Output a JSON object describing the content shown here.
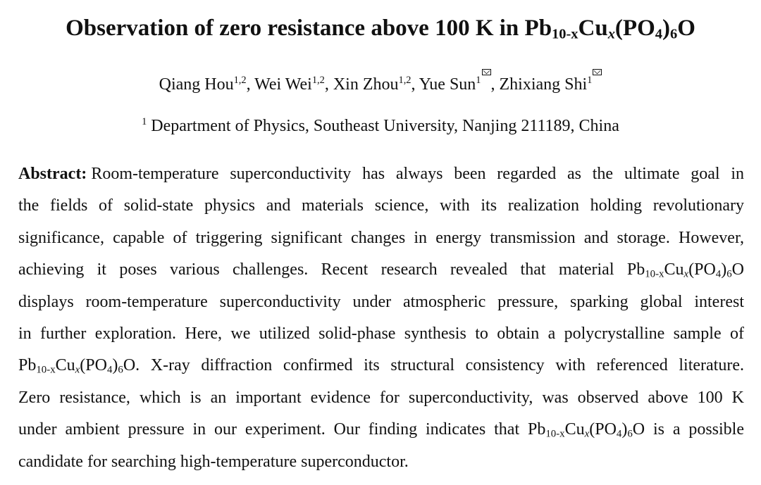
{
  "paper": {
    "title": {
      "prefix": "Observation of zero resistance above 100 K in ",
      "formula": {
        "a": "Pb",
        "b": "10-x",
        "c": "Cu",
        "d": "x",
        "e": "(PO",
        "f": "4",
        "g": ")",
        "h": "6",
        "i": "O"
      }
    },
    "authors": [
      {
        "name": "Qiang Hou",
        "aff": "1,2",
        "corresponding": false,
        "sep": ", "
      },
      {
        "name": "Wei Wei",
        "aff": "1,2",
        "corresponding": false,
        "sep": ", "
      },
      {
        "name": "Xin Zhou",
        "aff": "1,2",
        "corresponding": false,
        "sep": ", "
      },
      {
        "name": "Yue Sun",
        "aff": "1",
        "corresponding": true,
        "sep": ", "
      },
      {
        "name": "Zhixiang Shi",
        "aff": "1",
        "corresponding": true,
        "sep": ""
      }
    ],
    "affiliation": {
      "marker": "1",
      "text": "Department of Physics, Southeast University, Nanjing 211189, China"
    },
    "abstract": {
      "label": "Abstract:",
      "lines": [
        "Room-temperature superconductivity has always been regarded as the ultimate goal in",
        "the fields of solid-state physics and materials science, with its realization holding revolutionary",
        "significance, capable of triggering significant changes in energy transmission and storage. However,",
        "achieving it poses various challenges. Recent research revealed that material ",
        "displays room-temperature superconductivity under atmospheric pressure, sparking global interest",
        "in further exploration. Here, we utilized solid-phase synthesis to obtain a polycrystalline sample of",
        ". X-ray diffraction confirmed its structural consistency with referenced literature.",
        "Zero resistance, which is an important evidence for superconductivity, was observed above 100 K",
        "under ambient pressure in our experiment. Our finding indicates that ",
        "candidate for searching high-temperature superconductor."
      ],
      "line9_tail": " is a possible"
    }
  }
}
